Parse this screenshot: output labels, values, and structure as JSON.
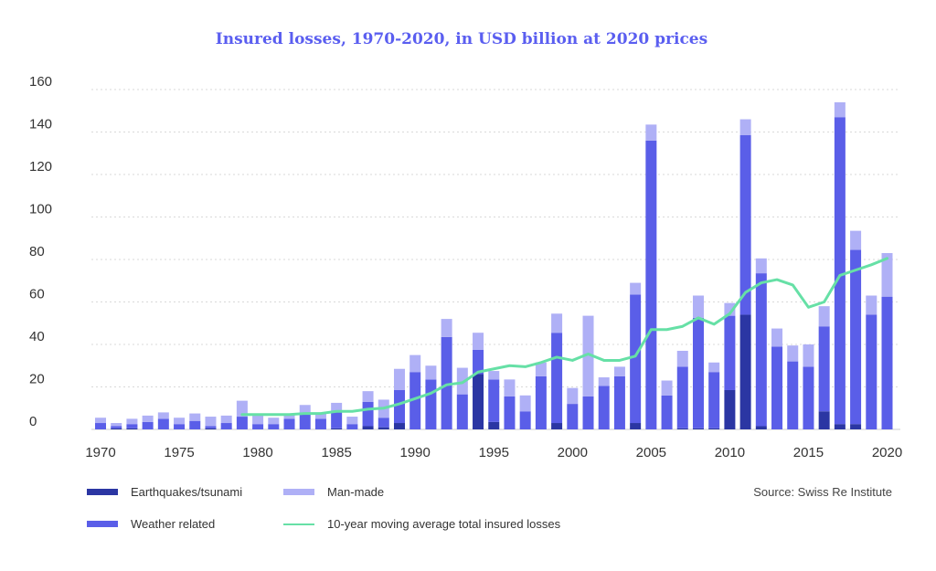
{
  "chart_data": {
    "type": "bar",
    "title": "Insured losses, 1970-2020, in USD billion at 2020 prices",
    "stacked": true,
    "ylim": [
      0,
      160
    ],
    "yticks": [
      0,
      20,
      40,
      60,
      80,
      100,
      120,
      140,
      160
    ],
    "x": [
      1970,
      1971,
      1972,
      1973,
      1974,
      1975,
      1976,
      1977,
      1978,
      1979,
      1980,
      1981,
      1982,
      1983,
      1984,
      1985,
      1986,
      1987,
      1988,
      1989,
      1990,
      1991,
      1992,
      1993,
      1994,
      1995,
      1996,
      1997,
      1998,
      1999,
      2000,
      2001,
      2002,
      2003,
      2004,
      2005,
      2006,
      2007,
      2008,
      2009,
      2010,
      2011,
      2012,
      2013,
      2014,
      2015,
      2016,
      2017,
      2018,
      2019,
      2020
    ],
    "xticks": [
      1970,
      1975,
      1980,
      1985,
      1990,
      1995,
      2000,
      2005,
      2010,
      2015,
      2020
    ],
    "series": [
      {
        "name": "Earthquakes/tsunami",
        "color": "#2b36a3",
        "values": [
          0,
          0.5,
          0.5,
          0,
          0,
          0,
          0,
          0.5,
          0,
          0,
          0,
          0,
          0,
          0,
          0,
          0.5,
          0,
          1.5,
          1,
          3,
          0,
          0,
          0,
          0,
          26,
          3.5,
          0,
          0,
          0,
          3,
          0,
          0,
          0,
          0,
          3,
          0,
          0,
          0.5,
          0.5,
          0.5,
          18.5,
          54,
          1.5,
          0,
          0,
          0,
          8.5,
          2.5,
          2.5,
          0,
          0
        ]
      },
      {
        "name": "Weather related",
        "color": "#5a5ee8",
        "values": [
          3,
          1,
          2,
          3.5,
          5,
          2.5,
          4,
          1,
          3,
          6,
          2.5,
          2.5,
          5,
          7.5,
          5,
          7.5,
          2.5,
          11.5,
          4.5,
          15.5,
          27,
          23.5,
          43.5,
          16.5,
          11.5,
          20,
          15.5,
          8.5,
          25,
          42.5,
          12,
          15.5,
          20.5,
          25,
          60.5,
          136,
          16,
          29,
          52,
          26.5,
          35,
          84.5,
          72,
          39,
          32,
          29.5,
          40,
          144.5,
          82,
          54,
          62.5
        ]
      },
      {
        "name": "Man-made",
        "color": "#afb0f6",
        "values": [
          2.5,
          1.5,
          2.5,
          3,
          3,
          3,
          3.5,
          4.5,
          3.5,
          7.5,
          5,
          3,
          2.5,
          4,
          2.5,
          4.5,
          3.5,
          5,
          8.5,
          10,
          8,
          6.5,
          8.5,
          12.5,
          8,
          4,
          8,
          7.5,
          6.5,
          9,
          7.5,
          38,
          4,
          4.5,
          5.5,
          7.5,
          7,
          7.5,
          10.5,
          4.5,
          6,
          7.5,
          7,
          8.5,
          7.5,
          10.5,
          9.5,
          7,
          9,
          9,
          20.5
        ]
      }
    ],
    "moving_average": {
      "name": "10-year moving average total insured losses",
      "color": "#66e0a6",
      "x": [
        1979,
        1980,
        1981,
        1982,
        1983,
        1984,
        1985,
        1986,
        1987,
        1988,
        1989,
        1990,
        1991,
        1992,
        1993,
        1994,
        1995,
        1996,
        1997,
        1998,
        1999,
        2000,
        2001,
        2002,
        2003,
        2004,
        2005,
        2006,
        2007,
        2008,
        2009,
        2010,
        2011,
        2012,
        2013,
        2014,
        2015,
        2016,
        2017,
        2018,
        2019,
        2020
      ],
      "values": [
        7,
        7,
        7,
        7,
        7.5,
        7.5,
        8.5,
        8.5,
        9.5,
        10,
        12,
        14.5,
        17,
        21,
        22,
        27,
        28.5,
        30,
        29.5,
        31.5,
        34,
        32.5,
        35.5,
        32.5,
        32.5,
        34.5,
        47,
        47,
        48.5,
        52.5,
        49.5,
        54.5,
        64.5,
        69,
        70.5,
        68,
        57.5,
        60,
        72.5,
        75,
        77.5,
        80.5
      ]
    }
  },
  "legend": {
    "earthquakes": "Earthquakes/tsunami",
    "man_made": "Man-made",
    "weather": "Weather related",
    "moving_avg": "10-year moving average total insured losses"
  },
  "source": "Source: Swiss Re Institute"
}
